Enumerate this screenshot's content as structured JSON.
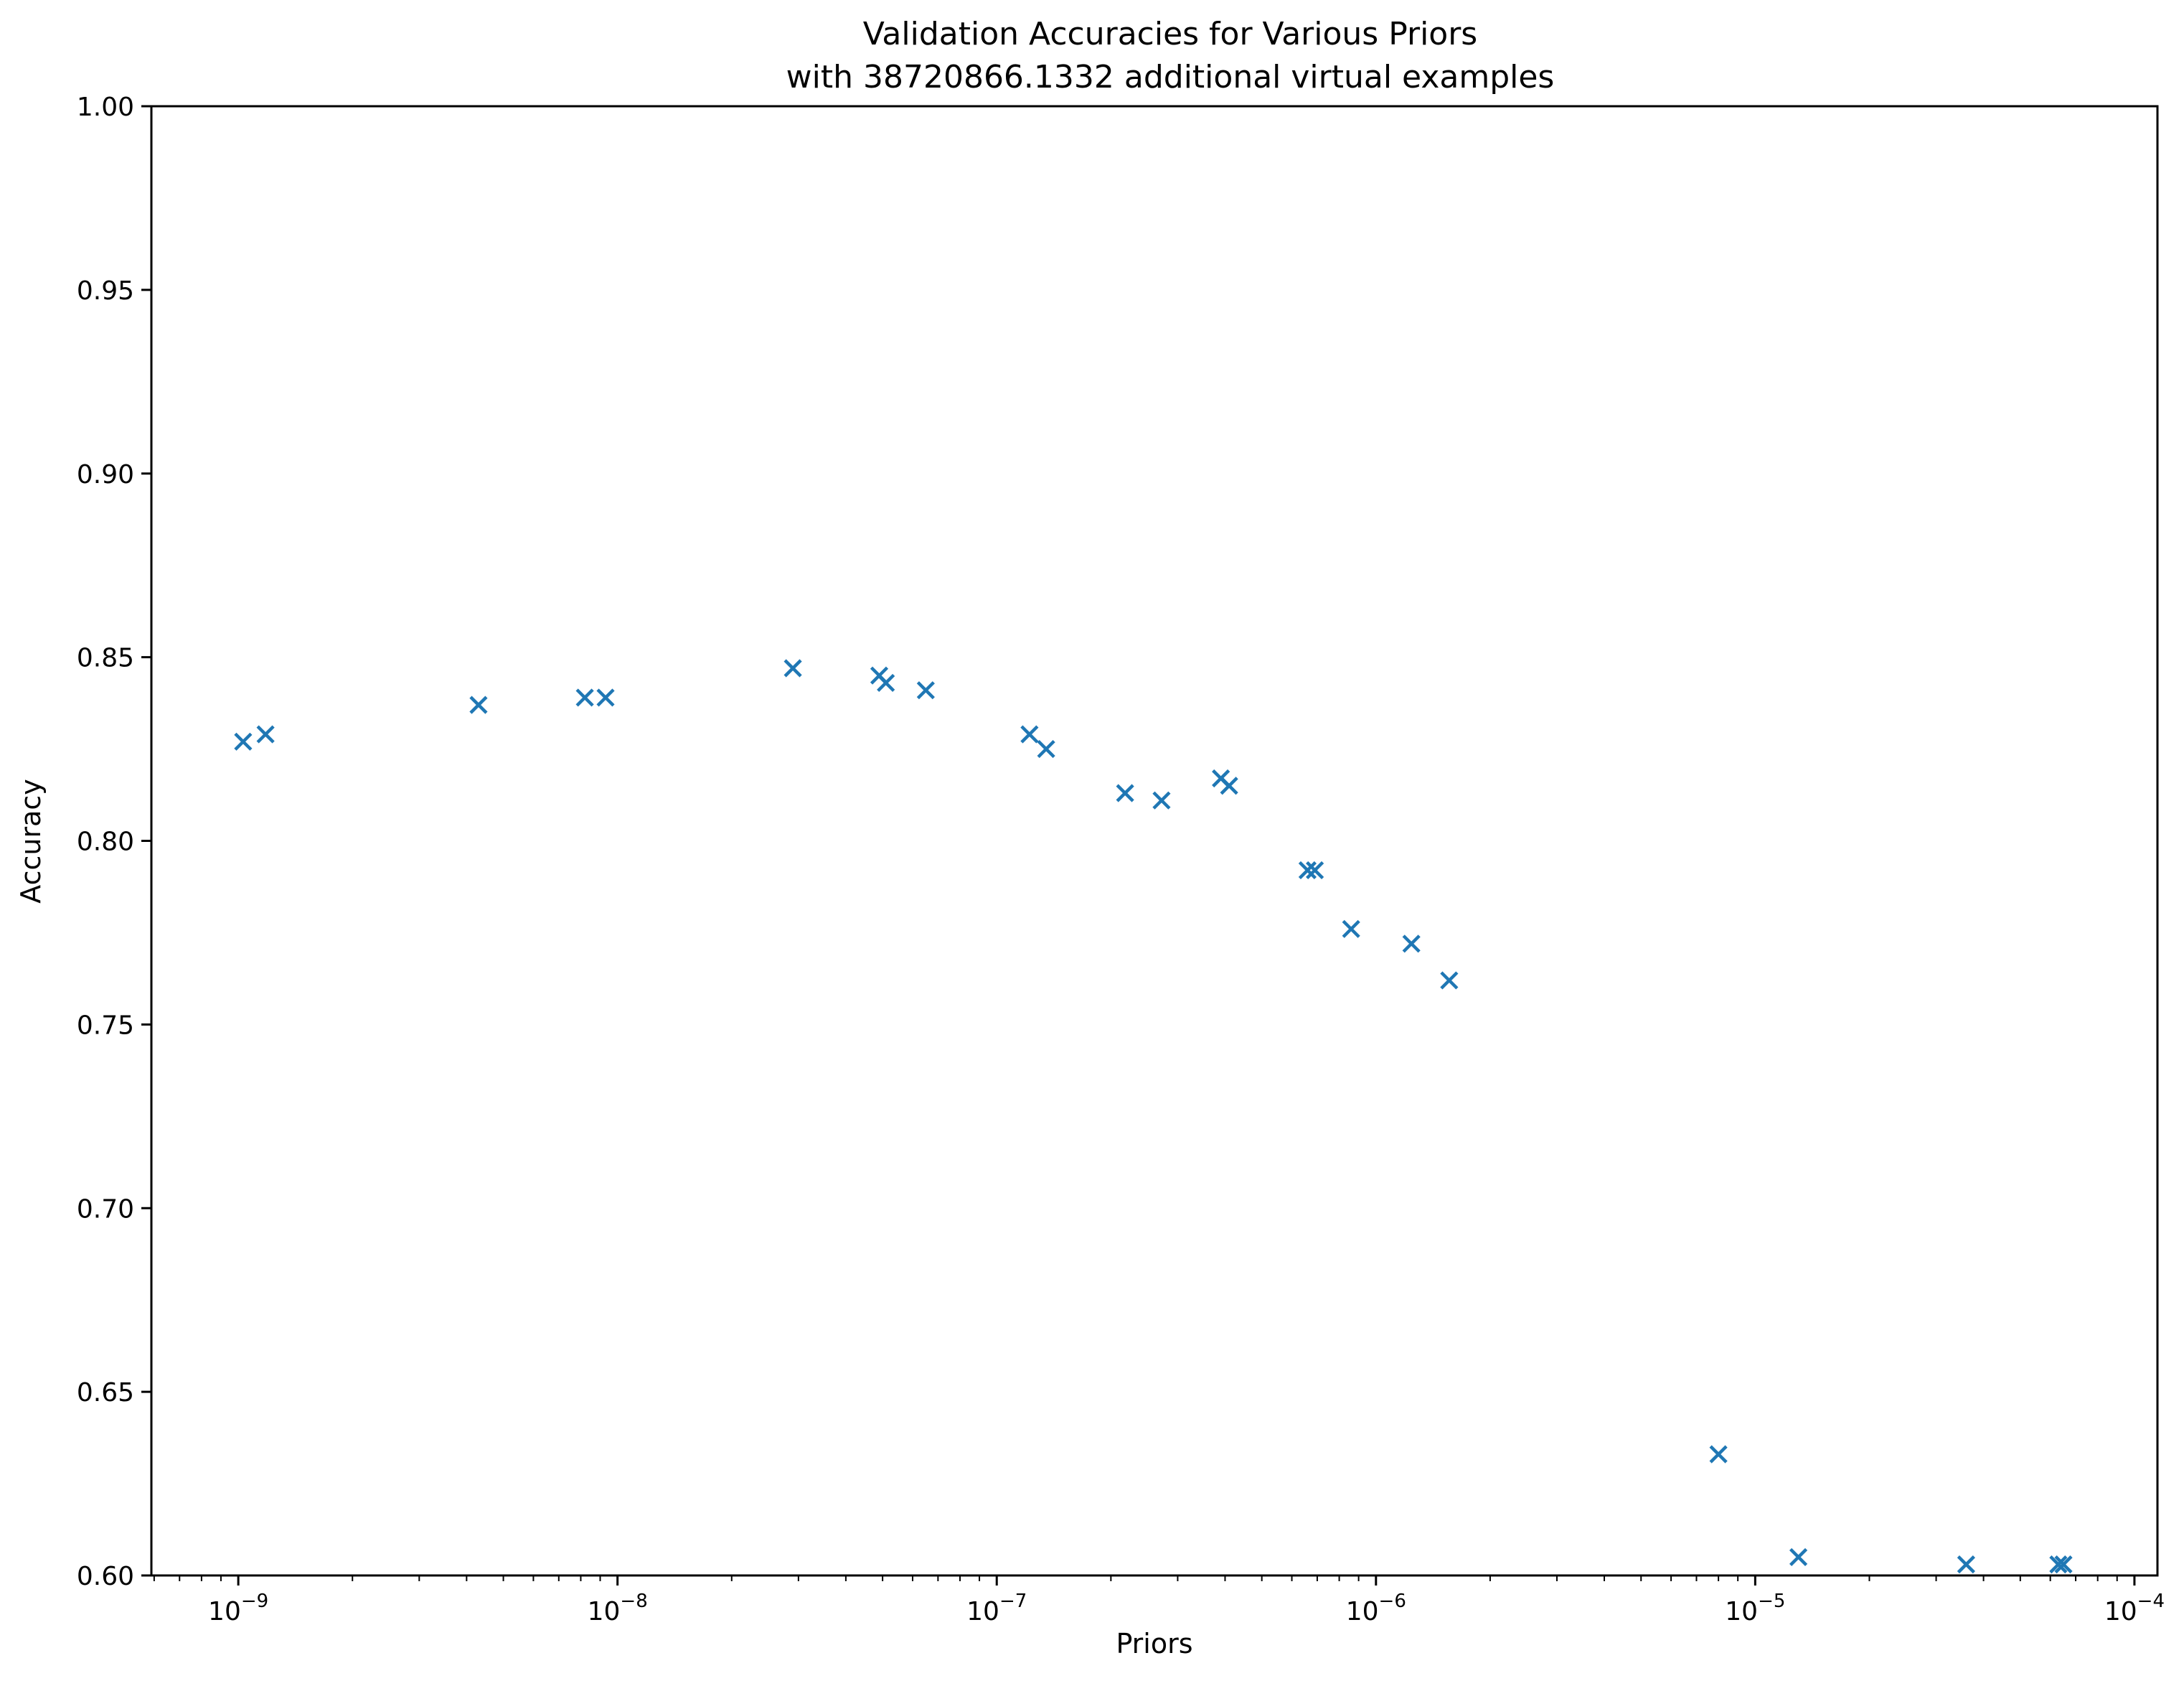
{
  "chart_data": {
    "type": "scatter",
    "title": "Validation Accuracies for Various Priors",
    "subtitle": "with 38720866.1332 additional virtual examples",
    "xlabel": "Priors",
    "ylabel": "Accuracy",
    "xscale": "log",
    "xlim": [
      5.9e-10,
      0.000115
    ],
    "ylim": [
      0.6,
      1.0
    ],
    "x_ticks": [
      {
        "value": 1e-09,
        "base": "10",
        "exp": "−9"
      },
      {
        "value": 1e-08,
        "base": "10",
        "exp": "−8"
      },
      {
        "value": 1e-07,
        "base": "10",
        "exp": "−7"
      },
      {
        "value": 1e-06,
        "base": "10",
        "exp": "−6"
      },
      {
        "value": 1e-05,
        "base": "10",
        "exp": "−5"
      },
      {
        "value": 0.0001,
        "base": "10",
        "exp": "−4"
      }
    ],
    "y_ticks": [
      "0.60",
      "0.65",
      "0.70",
      "0.75",
      "0.80",
      "0.85",
      "0.90",
      "0.95",
      "1.00"
    ],
    "grid": false,
    "marker": "x",
    "marker_color": "#1f77b4",
    "points": [
      {
        "x": 1.03e-09,
        "y": 0.827
      },
      {
        "x": 1.18e-09,
        "y": 0.829
      },
      {
        "x": 4.3e-09,
        "y": 0.837
      },
      {
        "x": 8.2e-09,
        "y": 0.839
      },
      {
        "x": 9.3e-09,
        "y": 0.839
      },
      {
        "x": 2.9e-08,
        "y": 0.847
      },
      {
        "x": 4.9e-08,
        "y": 0.845
      },
      {
        "x": 5.1e-08,
        "y": 0.843
      },
      {
        "x": 6.5e-08,
        "y": 0.841
      },
      {
        "x": 1.22e-07,
        "y": 0.829
      },
      {
        "x": 1.35e-07,
        "y": 0.825
      },
      {
        "x": 2.18e-07,
        "y": 0.813
      },
      {
        "x": 2.72e-07,
        "y": 0.811
      },
      {
        "x": 3.9e-07,
        "y": 0.817
      },
      {
        "x": 4.1e-07,
        "y": 0.815
      },
      {
        "x": 6.6e-07,
        "y": 0.792
      },
      {
        "x": 6.9e-07,
        "y": 0.792
      },
      {
        "x": 8.6e-07,
        "y": 0.776
      },
      {
        "x": 1.24e-06,
        "y": 0.772
      },
      {
        "x": 1.56e-06,
        "y": 0.762
      },
      {
        "x": 8e-06,
        "y": 0.633
      },
      {
        "x": 1.3e-05,
        "y": 0.605
      },
      {
        "x": 3.6e-05,
        "y": 0.603
      },
      {
        "x": 6.3e-05,
        "y": 0.603
      },
      {
        "x": 6.5e-05,
        "y": 0.603
      }
    ]
  }
}
